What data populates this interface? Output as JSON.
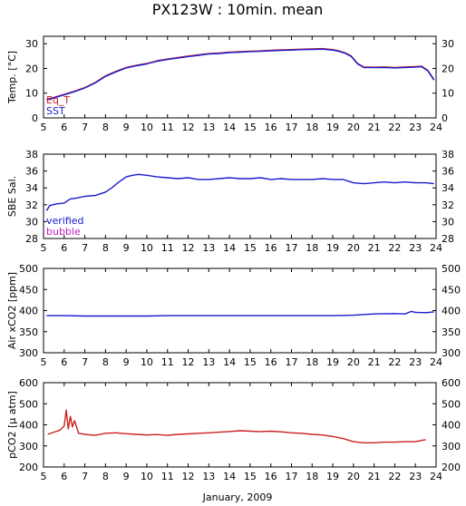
{
  "title": "PX123W : 10min. mean",
  "xlabel": "January, 2009",
  "colors": {
    "blue": "#1a1ad0",
    "red": "#cc2020",
    "magenta": "#c020c0"
  },
  "chart_data": [
    {
      "type": "line",
      "ylabel": "Temp. [°C]",
      "ylim": [
        0,
        33
      ],
      "yticks": [
        0,
        10,
        20,
        30
      ],
      "xlim": [
        5,
        24
      ],
      "xticks": [
        5,
        6,
        7,
        8,
        9,
        10,
        11,
        12,
        13,
        14,
        15,
        16,
        17,
        18,
        19,
        20,
        21,
        22,
        23,
        24
      ],
      "legend": [
        "Eq_T",
        "SST"
      ],
      "legend_position": "bottom-left",
      "series": [
        {
          "name": "Eq_T",
          "color": "#cc2020",
          "x": [
            5.15,
            5.5,
            6,
            6.5,
            7,
            7.5,
            8,
            8.5,
            9,
            9.5,
            10,
            10.5,
            11,
            11.5,
            12,
            12.5,
            13,
            13.5,
            14,
            14.5,
            15,
            15.5,
            16,
            16.5,
            17,
            17.5,
            18,
            18.5,
            19,
            19.3,
            19.6,
            19.9,
            20.2,
            20.5,
            21,
            21.5,
            22,
            22.5,
            23,
            23.3,
            23.6,
            23.9
          ],
          "y": [
            7.5,
            8.3,
            9.5,
            10.8,
            12.3,
            14.3,
            17,
            18.8,
            20.4,
            21.3,
            22,
            23.1,
            23.8,
            24.4,
            25,
            25.5,
            26,
            26.2,
            26.6,
            26.8,
            27,
            27.1,
            27.3,
            27.5,
            27.6,
            27.8,
            27.9,
            28,
            27.6,
            27.1,
            26.3,
            25,
            22,
            20.6,
            20.5,
            20.6,
            20.4,
            20.6,
            20.7,
            20.9,
            19.2,
            15.5
          ]
        },
        {
          "name": "SST",
          "color": "#1a1ad0",
          "x": [
            5.15,
            5.5,
            6,
            6.5,
            7,
            7.5,
            8,
            8.5,
            9,
            9.5,
            10,
            10.5,
            11,
            11.5,
            12,
            12.5,
            13,
            13.5,
            14,
            14.5,
            15,
            15.5,
            16,
            16.5,
            17,
            17.5,
            18,
            18.5,
            19,
            19.3,
            19.6,
            19.9,
            20.2,
            20.5,
            21,
            21.5,
            22,
            22.5,
            23,
            23.3,
            23.6,
            23.9
          ],
          "y": [
            7.3,
            8.1,
            9.3,
            10.6,
            12.1,
            14.1,
            16.8,
            18.6,
            20.2,
            21.1,
            21.8,
            22.9,
            23.6,
            24.2,
            24.8,
            25.3,
            25.8,
            26,
            26.4,
            26.6,
            26.8,
            26.9,
            27.1,
            27.3,
            27.4,
            27.6,
            27.7,
            27.8,
            27.4,
            26.9,
            26.1,
            24.8,
            21.8,
            20.4,
            20.3,
            20.4,
            20.2,
            20.4,
            20.5,
            20.7,
            19,
            15.3
          ]
        }
      ]
    },
    {
      "type": "line",
      "ylabel": "SBE Sal.",
      "ylim": [
        28,
        38
      ],
      "yticks": [
        28,
        30,
        32,
        34,
        36,
        38
      ],
      "xlim": [
        5,
        24
      ],
      "xticks": [
        5,
        6,
        7,
        8,
        9,
        10,
        11,
        12,
        13,
        14,
        15,
        16,
        17,
        18,
        19,
        20,
        21,
        22,
        23,
        24
      ],
      "legend": [
        "verified",
        "bubble"
      ],
      "legend_position": "bottom-left",
      "series": [
        {
          "name": "verified",
          "color": "#1a1ad0",
          "x": [
            5.15,
            5.3,
            5.6,
            6,
            6.3,
            6.6,
            7,
            7.5,
            8,
            8.3,
            8.6,
            9,
            9.3,
            9.6,
            10,
            10.5,
            11,
            11.5,
            12,
            12.5,
            13,
            13.5,
            14,
            14.5,
            15,
            15.5,
            16,
            16.5,
            17,
            17.5,
            18,
            18.5,
            19,
            19.5,
            20,
            20.5,
            21,
            21.5,
            22,
            22.5,
            23,
            23.5,
            23.9
          ],
          "y": [
            31.3,
            31.9,
            32.1,
            32.2,
            32.7,
            32.8,
            33,
            33.1,
            33.5,
            34,
            34.6,
            35.3,
            35.5,
            35.6,
            35.5,
            35.3,
            35.2,
            35.1,
            35.2,
            35,
            35,
            35.1,
            35.2,
            35.1,
            35.1,
            35.2,
            35,
            35.1,
            35,
            35,
            35,
            35.1,
            35,
            35,
            34.6,
            34.5,
            34.6,
            34.7,
            34.6,
            34.7,
            34.6,
            34.6,
            34.5
          ]
        }
      ]
    },
    {
      "type": "line",
      "ylabel": "Air xCO2 [ppm]",
      "ylim": [
        300,
        500
      ],
      "yticks": [
        300,
        350,
        400,
        450,
        500
      ],
      "xlim": [
        5,
        24
      ],
      "xticks": [
        5,
        6,
        7,
        8,
        9,
        10,
        11,
        12,
        13,
        14,
        15,
        16,
        17,
        18,
        19,
        20,
        21,
        22,
        23,
        24
      ],
      "series": [
        {
          "name": "",
          "color": "#1a1ad0",
          "x": [
            5.15,
            6,
            7,
            8,
            9,
            10,
            11,
            12,
            13,
            14,
            15,
            16,
            17,
            18,
            19,
            20,
            21,
            22,
            22.5,
            22.8,
            23,
            23.5,
            23.9
          ],
          "y": [
            388,
            388,
            387,
            387,
            387,
            387,
            388,
            388,
            388,
            388,
            388,
            388,
            388,
            388,
            388,
            389,
            392,
            393,
            392,
            398,
            396,
            395,
            397
          ]
        }
      ]
    },
    {
      "type": "line",
      "ylabel": "pCO2 [μ atm]",
      "ylim": [
        200,
        600
      ],
      "yticks": [
        200,
        300,
        400,
        500,
        600
      ],
      "xlim": [
        5,
        24
      ],
      "xticks": [
        5,
        6,
        7,
        8,
        9,
        10,
        11,
        12,
        13,
        14,
        15,
        16,
        17,
        18,
        19,
        20,
        21,
        22,
        23,
        24
      ],
      "series": [
        {
          "name": "",
          "color": "#cc2020",
          "x": [
            5.2,
            5.5,
            5.8,
            6,
            6.1,
            6.2,
            6.3,
            6.4,
            6.5,
            6.7,
            7,
            7.5,
            8,
            8.5,
            9,
            9.5,
            10,
            10.5,
            11,
            11.5,
            12,
            12.5,
            13,
            13.5,
            14,
            14.5,
            15,
            15.5,
            16,
            16.5,
            17,
            17.5,
            18,
            18.5,
            19,
            19.5,
            20,
            20.5,
            21,
            21.5,
            22,
            22.5,
            23,
            23.5
          ],
          "y": [
            355,
            365,
            375,
            395,
            470,
            380,
            440,
            390,
            420,
            360,
            355,
            350,
            360,
            362,
            358,
            355,
            352,
            354,
            350,
            355,
            357,
            360,
            362,
            365,
            368,
            372,
            370,
            368,
            370,
            367,
            362,
            360,
            355,
            352,
            345,
            335,
            320,
            315,
            315,
            318,
            318,
            320,
            320,
            330
          ]
        }
      ]
    }
  ]
}
